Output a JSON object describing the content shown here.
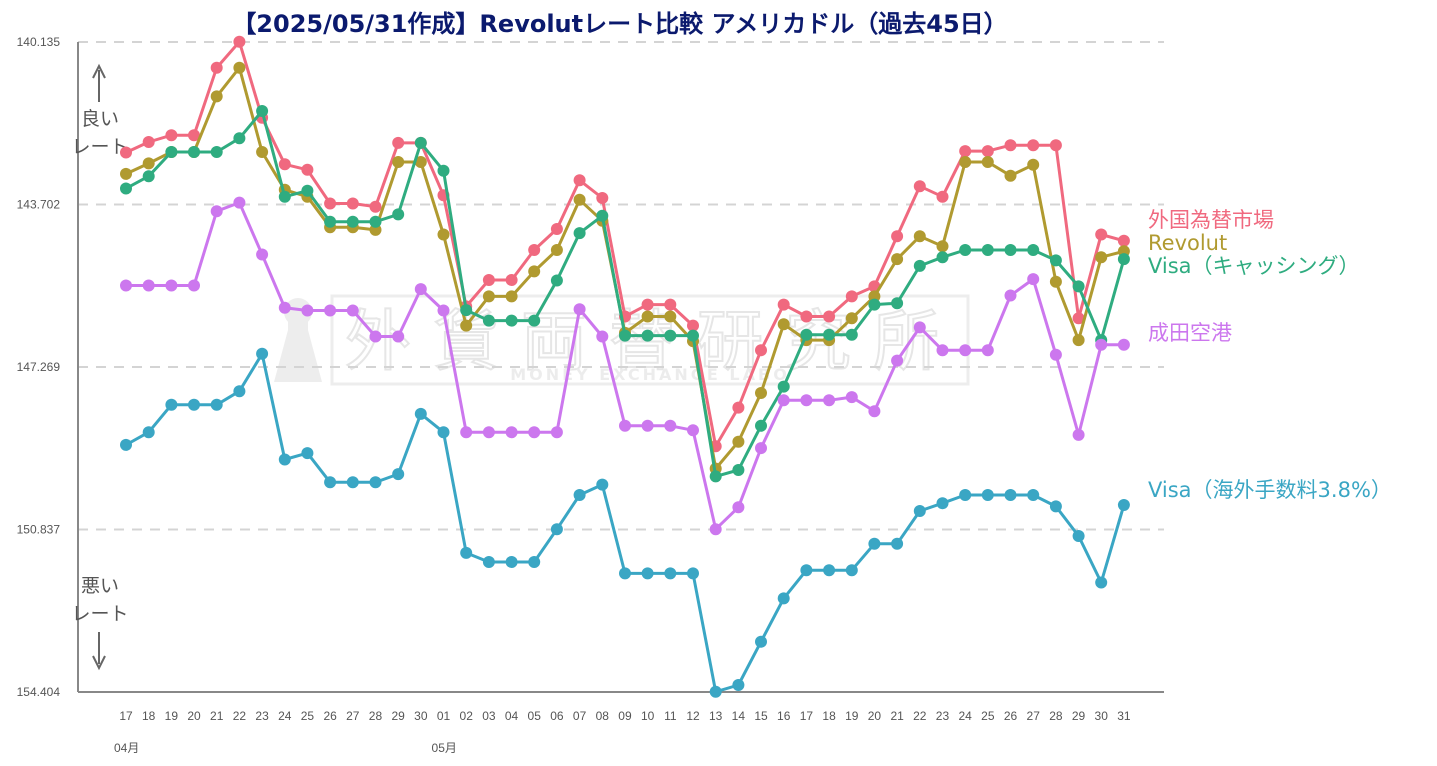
{
  "chart_data": {
    "type": "line",
    "title": "【2025/05/31作成】Revolutレート比較 アメリカドル（過去45日）",
    "y_ticks": [
      "140.135",
      "143.702",
      "147.269",
      "150.837",
      "154.404"
    ],
    "ylim": [
      140.135,
      154.404
    ],
    "y_inverted": true,
    "grid": "horizontal dashed",
    "categories": [
      "17",
      "18",
      "19",
      "20",
      "21",
      "22",
      "23",
      "24",
      "25",
      "26",
      "27",
      "28",
      "29",
      "30",
      "01",
      "02",
      "03",
      "04",
      "05",
      "06",
      "07",
      "08",
      "09",
      "10",
      "11",
      "12",
      "13",
      "14",
      "15",
      "16",
      "17",
      "18",
      "19",
      "20",
      "21",
      "22",
      "23",
      "24",
      "25",
      "26",
      "27",
      "28",
      "29",
      "30",
      "31"
    ],
    "month_labels": [
      {
        "label": "04月",
        "index": 0
      },
      {
        "label": "05月",
        "index": 14
      }
    ],
    "hints": {
      "good": [
        "良い",
        "レート"
      ],
      "bad": [
        "悪い",
        "レート"
      ]
    },
    "watermark": {
      "kanji": [
        "外",
        "貨",
        "両",
        "替",
        "研",
        "究",
        "所"
      ],
      "text": "MONEY EXCHANGE LABO"
    },
    "series": [
      {
        "name": "外国為替市場",
        "color": "#f0697f",
        "values": [
          142.56,
          142.33,
          142.18,
          142.18,
          140.7,
          140.13,
          141.8,
          142.82,
          142.94,
          143.68,
          143.68,
          143.75,
          142.35,
          142.35,
          143.5,
          145.94,
          145.36,
          145.36,
          144.7,
          144.24,
          143.17,
          143.56,
          146.16,
          145.9,
          145.9,
          146.36,
          149.01,
          148.16,
          146.9,
          145.9,
          146.16,
          146.16,
          145.72,
          145.5,
          144.4,
          143.3,
          143.53,
          142.53,
          142.53,
          142.4,
          142.4,
          142.4,
          146.2,
          144.36,
          144.5
        ]
      },
      {
        "name": "Revolut",
        "color": "#b09a30",
        "values": [
          143.03,
          142.8,
          142.55,
          142.55,
          141.33,
          140.7,
          142.55,
          143.38,
          143.53,
          144.2,
          144.2,
          144.26,
          142.77,
          142.77,
          144.36,
          146.36,
          145.72,
          145.72,
          145.17,
          144.7,
          143.6,
          144.06,
          146.52,
          146.16,
          146.16,
          146.7,
          149.5,
          148.91,
          147.84,
          146.33,
          146.68,
          146.68,
          146.2,
          145.72,
          144.9,
          144.4,
          144.62,
          142.77,
          142.77,
          143.07,
          142.83,
          145.4,
          146.68,
          144.86,
          144.73
        ]
      },
      {
        "name": "Visa（キャッシング）",
        "color": "#2fac80",
        "values": [
          143.35,
          143.08,
          142.55,
          142.55,
          142.55,
          142.25,
          141.65,
          143.53,
          143.4,
          144.08,
          144.08,
          144.08,
          143.92,
          142.35,
          142.96,
          146.02,
          146.25,
          146.25,
          146.25,
          145.37,
          144.33,
          143.95,
          146.58,
          146.58,
          146.58,
          146.58,
          149.67,
          149.53,
          148.56,
          147.7,
          146.56,
          146.56,
          146.56,
          145.9,
          145.87,
          145.05,
          144.86,
          144.7,
          144.7,
          144.7,
          144.7,
          144.93,
          145.5,
          146.68,
          144.9
        ]
      },
      {
        "name": "成田空港",
        "color": "#cc77ee",
        "values": [
          145.48,
          145.48,
          145.48,
          145.48,
          143.85,
          143.66,
          144.8,
          145.97,
          146.03,
          146.03,
          146.03,
          146.6,
          146.6,
          145.56,
          146.03,
          148.7,
          148.7,
          148.7,
          148.7,
          148.7,
          146.0,
          146.6,
          148.56,
          148.56,
          148.56,
          148.66,
          150.83,
          150.35,
          149.05,
          148.0,
          148.0,
          148.0,
          147.93,
          148.24,
          147.13,
          146.4,
          146.9,
          146.9,
          146.9,
          145.7,
          145.34,
          147.0,
          148.76,
          146.78,
          146.78
        ]
      },
      {
        "name": "Visa（海外手数料3.8%）",
        "color": "#3aa6c4",
        "values": [
          148.98,
          148.7,
          148.1,
          148.1,
          148.1,
          147.8,
          146.98,
          149.3,
          149.16,
          149.8,
          149.8,
          149.8,
          149.62,
          148.3,
          148.7,
          151.35,
          151.55,
          151.55,
          151.55,
          150.83,
          150.08,
          149.85,
          151.8,
          151.8,
          151.8,
          151.8,
          154.4,
          154.25,
          153.3,
          152.35,
          151.73,
          151.73,
          151.73,
          151.15,
          151.15,
          150.43,
          150.26,
          150.08,
          150.08,
          150.08,
          150.08,
          150.33,
          150.98,
          152.0,
          150.3
        ]
      }
    ]
  }
}
